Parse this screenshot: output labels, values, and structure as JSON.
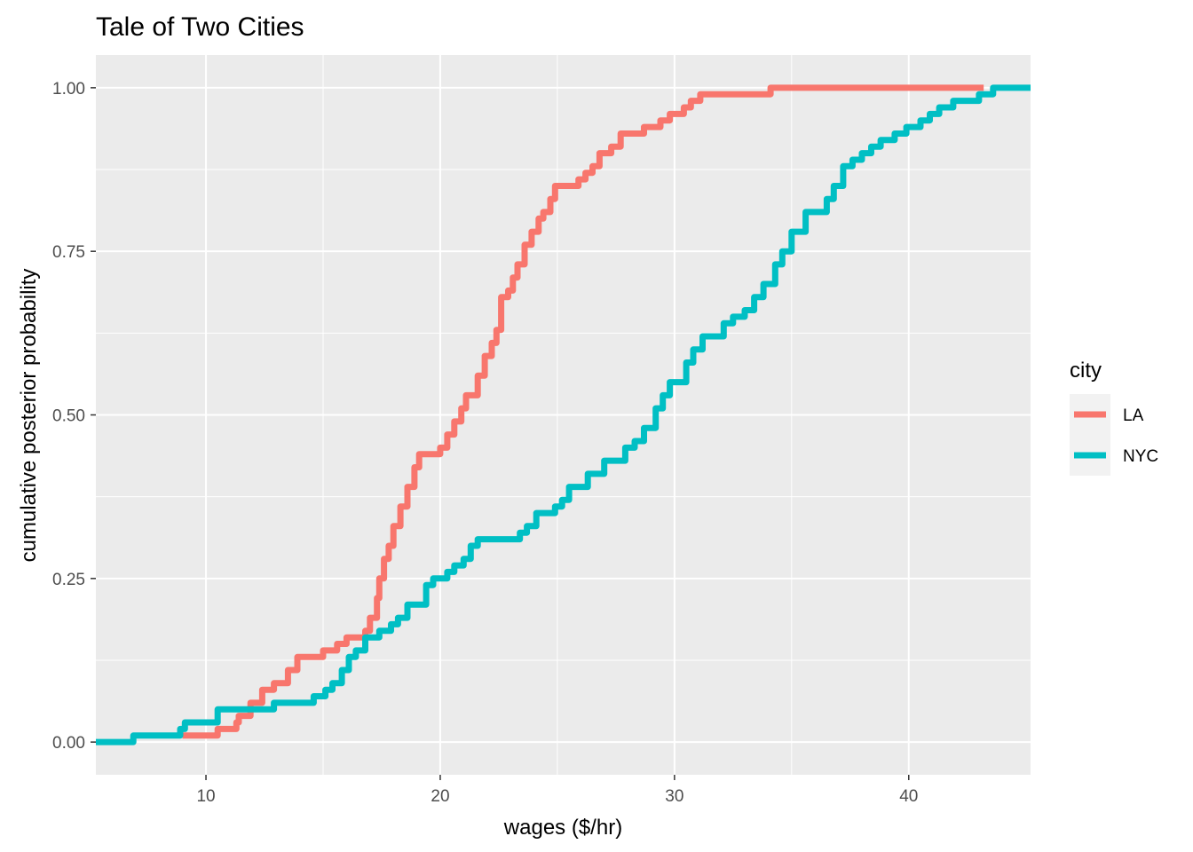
{
  "chart_data": {
    "type": "line",
    "step": true,
    "title": "Tale of Two Cities",
    "xlabel": "wages ($/hr)",
    "ylabel": "cumulative posterior probability",
    "xlim": [
      5.3,
      45.2
    ],
    "ylim": [
      -0.05,
      1.05
    ],
    "xticks": [
      10,
      20,
      30,
      40
    ],
    "xtick_labels": [
      "10",
      "20",
      "30",
      "40"
    ],
    "yticks": [
      0,
      0.25,
      0.5,
      0.75,
      1
    ],
    "ytick_labels": [
      "0.00",
      "0.25",
      "0.50",
      "0.75",
      "1.00"
    ],
    "xminor": [
      15,
      25,
      35
    ],
    "yminor": [
      0.125,
      0.375,
      0.625,
      0.875
    ],
    "grid": true,
    "panel_background": "#ebebeb",
    "grid_color": "#ffffff",
    "legend": {
      "title": "city",
      "position": "right",
      "entries": [
        {
          "label": "LA",
          "color": "#f8766d"
        },
        {
          "label": "NYC",
          "color": "#00bfc4"
        }
      ]
    },
    "series": [
      {
        "name": "LA",
        "color": "#f8766d",
        "x": [
          9.0,
          10.5,
          11.3,
          11.4,
          11.9,
          12.4,
          12.9,
          13.5,
          13.9,
          14.1,
          15.0,
          15.6,
          16.0,
          16.8,
          17.0,
          17.3,
          17.4,
          17.6,
          17.8,
          18.0,
          18.3,
          18.6,
          18.9,
          19.1,
          20.0,
          20.3,
          20.6,
          20.9,
          21.1,
          21.3,
          21.6,
          21.9,
          22.2,
          22.4,
          22.6,
          22.9,
          23.1,
          23.3,
          23.6,
          23.9,
          24.2,
          24.4,
          24.7,
          24.9,
          25.2,
          25.9,
          26.2,
          26.5,
          26.8,
          27.0,
          27.3,
          27.7,
          28.3,
          28.7,
          29.4,
          29.8,
          30.0,
          30.4,
          30.7,
          31.1,
          34.1,
          43.2
        ],
        "y": [
          0.01,
          0.02,
          0.03,
          0.04,
          0.06,
          0.08,
          0.09,
          0.11,
          0.13,
          0.13,
          0.14,
          0.15,
          0.16,
          0.17,
          0.19,
          0.22,
          0.25,
          0.28,
          0.3,
          0.33,
          0.36,
          0.39,
          0.42,
          0.44,
          0.45,
          0.47,
          0.49,
          0.51,
          0.53,
          0.53,
          0.56,
          0.59,
          0.61,
          0.63,
          0.68,
          0.69,
          0.71,
          0.73,
          0.76,
          0.78,
          0.8,
          0.81,
          0.83,
          0.85,
          0.85,
          0.86,
          0.87,
          0.88,
          0.9,
          0.9,
          0.91,
          0.93,
          0.93,
          0.94,
          0.95,
          0.96,
          0.96,
          0.97,
          0.98,
          0.99,
          1.0,
          1.0
        ]
      },
      {
        "name": "NYC",
        "color": "#00bfc4",
        "x": [
          5.3,
          6.9,
          8.9,
          9.1,
          10.5,
          11.2,
          12.9,
          13.4,
          14.6,
          15.1,
          15.4,
          15.8,
          16.1,
          16.4,
          16.8,
          17.4,
          17.9,
          18.2,
          18.6,
          19.4,
          19.7,
          20.3,
          20.6,
          21.0,
          21.3,
          21.6,
          21.9,
          22.2,
          23.4,
          23.7,
          24.1,
          24.6,
          24.9,
          25.2,
          25.5,
          26.3,
          27.0,
          27.5,
          27.9,
          28.3,
          28.7,
          29.2,
          29.5,
          29.8,
          30.5,
          30.8,
          31.2,
          32.1,
          32.5,
          33.0,
          33.4,
          33.8,
          34.3,
          34.6,
          35.0,
          35.6,
          36.5,
          36.8,
          37.2,
          37.6,
          38.0,
          38.4,
          38.8,
          39.4,
          39.9,
          40.5,
          40.9,
          41.3,
          41.9,
          42.5,
          43.0,
          43.6,
          45.2
        ],
        "y": [
          0.0,
          0.01,
          0.02,
          0.03,
          0.05,
          0.05,
          0.06,
          0.06,
          0.07,
          0.08,
          0.09,
          0.11,
          0.13,
          0.14,
          0.16,
          0.17,
          0.18,
          0.19,
          0.21,
          0.24,
          0.25,
          0.26,
          0.27,
          0.28,
          0.3,
          0.31,
          0.31,
          0.31,
          0.32,
          0.33,
          0.35,
          0.35,
          0.36,
          0.37,
          0.39,
          0.41,
          0.43,
          0.43,
          0.45,
          0.46,
          0.48,
          0.51,
          0.53,
          0.55,
          0.58,
          0.6,
          0.62,
          0.64,
          0.65,
          0.66,
          0.68,
          0.7,
          0.73,
          0.75,
          0.78,
          0.81,
          0.83,
          0.85,
          0.88,
          0.89,
          0.9,
          0.91,
          0.92,
          0.93,
          0.94,
          0.95,
          0.96,
          0.97,
          0.98,
          0.98,
          0.99,
          1.0,
          1.0
        ]
      }
    ]
  }
}
